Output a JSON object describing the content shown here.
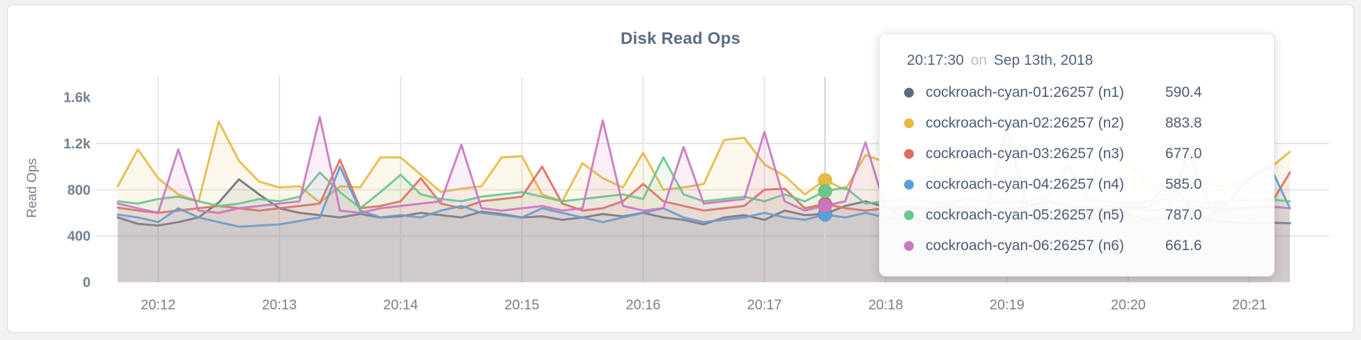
{
  "header": {
    "title": "Disk Read Ops"
  },
  "colors": {
    "page_bg": "#f3f2f0",
    "panel_bg": "#ffffff",
    "grid": "#e7e6e3",
    "crosshair": "#d3d2cf",
    "tick_text": "#75808f",
    "title_text": "#5b6c84"
  },
  "chart_data": {
    "type": "area",
    "title": "Disk Read Ops",
    "xlabel": "",
    "ylabel": "Read Ops",
    "x_start": "20:11:40",
    "x_step_seconds": 10,
    "x_tick_labels": [
      "20:12",
      "20:13",
      "20:14",
      "20:15",
      "20:16",
      "20:17",
      "20:18",
      "20:19",
      "20:20",
      "20:21"
    ],
    "y_ticks": [
      {
        "value": 0,
        "label": "0"
      },
      {
        "value": 400,
        "label": "400"
      },
      {
        "value": 800,
        "label": "800"
      },
      {
        "value": 1200,
        "label": "1.2k"
      },
      {
        "value": 1600,
        "label": "1.6k"
      }
    ],
    "y_grid_values": [
      400,
      800,
      1200
    ],
    "ylim": [
      0,
      1780
    ],
    "grid": true,
    "legend_position": "tooltip",
    "hover_time": "20:17:30",
    "series": [
      {
        "name": "cockroach-cyan-01:26257 (n1)",
        "color": "#5f6a80",
        "values": [
          560,
          505,
          490,
          520,
          560,
          690,
          890,
          760,
          640,
          600,
          580,
          560,
          590,
          560,
          570,
          600,
          580,
          560,
          610,
          590,
          560,
          570,
          540,
          560,
          590,
          570,
          600,
          560,
          540,
          500,
          560,
          580,
          540,
          620,
          580,
          590.4,
          660,
          700,
          650,
          560,
          520,
          560,
          600,
          560,
          540,
          580,
          560,
          540,
          600,
          560,
          580,
          540,
          560,
          580,
          540,
          520,
          510,
          515,
          510
        ]
      },
      {
        "name": "cockroach-cyan-02:26257 (n2)",
        "color": "#e7ba42",
        "values": [
          830,
          1150,
          900,
          760,
          700,
          1390,
          1050,
          870,
          820,
          830,
          690,
          830,
          820,
          1080,
          1080,
          930,
          780,
          810,
          830,
          1080,
          1090,
          760,
          700,
          1030,
          900,
          820,
          1120,
          800,
          820,
          850,
          1230,
          1250,
          1020,
          920,
          760,
          883.8,
          800,
          1100,
          1040,
          820,
          800,
          1150,
          900,
          820,
          800,
          850,
          820,
          800,
          820,
          1200,
          1050,
          820,
          800,
          820,
          850,
          820,
          900,
          985,
          1130
        ]
      },
      {
        "name": "cockroach-cyan-03:26257 (n3)",
        "color": "#e06c62",
        "values": [
          645,
          620,
          600,
          620,
          640,
          660,
          640,
          620,
          640,
          660,
          680,
          1060,
          640,
          660,
          700,
          900,
          680,
          640,
          700,
          720,
          740,
          1000,
          680,
          620,
          640,
          700,
          850,
          700,
          660,
          620,
          640,
          660,
          800,
          810,
          640,
          677,
          640,
          620,
          640,
          660,
          640,
          620,
          660,
          640,
          620,
          660,
          700,
          660,
          640,
          620,
          660,
          640,
          900,
          660,
          640,
          620,
          640,
          660,
          950
        ]
      },
      {
        "name": "cockroach-cyan-04:26257 (n4)",
        "color": "#5c9ed7",
        "values": [
          585,
          560,
          520,
          640,
          560,
          520,
          480,
          490,
          500,
          530,
          560,
          1000,
          620,
          560,
          580,
          560,
          620,
          660,
          600,
          580,
          560,
          640,
          600,
          560,
          520,
          560,
          600,
          640,
          560,
          520,
          540,
          560,
          600,
          560,
          540,
          585,
          560,
          600,
          560,
          540,
          560,
          520,
          560,
          600,
          560,
          540,
          520,
          560,
          540,
          560,
          580,
          540,
          560,
          540,
          560,
          700,
          900,
          1010,
          640
        ]
      },
      {
        "name": "cockroach-cyan-05:26257 (n5)",
        "color": "#6ac58f",
        "values": [
          700,
          680,
          720,
          740,
          700,
          660,
          680,
          720,
          700,
          740,
          950,
          780,
          640,
          780,
          930,
          760,
          720,
          700,
          740,
          760,
          780,
          740,
          700,
          720,
          740,
          760,
          720,
          1080,
          760,
          700,
          720,
          740,
          700,
          760,
          700,
          787,
          820,
          680,
          700,
          720,
          700,
          680,
          720,
          700,
          680,
          700,
          740,
          1010,
          720,
          700,
          680,
          700,
          720,
          700,
          680,
          700,
          710,
          715,
          700
        ]
      },
      {
        "name": "cockroach-cyan-06:26257 (n6)",
        "color": "#ca77bf",
        "values": [
          680,
          640,
          600,
          1150,
          620,
          600,
          640,
          660,
          680,
          700,
          1430,
          620,
          600,
          640,
          660,
          680,
          700,
          1190,
          640,
          620,
          640,
          660,
          620,
          640,
          1400,
          660,
          620,
          640,
          1170,
          680,
          700,
          720,
          1300,
          700,
          620,
          661.6,
          700,
          1210,
          640,
          620,
          640,
          660,
          640,
          620,
          1320,
          660,
          640,
          620,
          640,
          660,
          640,
          620,
          640,
          1150,
          660,
          640,
          650,
          655,
          640
        ]
      }
    ]
  },
  "tooltip": {
    "time": "20:17:30",
    "connector": "on",
    "date": "Sep 13th, 2018",
    "rows": [
      {
        "label": "cockroach-cyan-01:26257 (n1)",
        "value": "590.4",
        "color": "#5f6a80"
      },
      {
        "label": "cockroach-cyan-02:26257 (n2)",
        "value": "883.8",
        "color": "#e7ba42"
      },
      {
        "label": "cockroach-cyan-03:26257 (n3)",
        "value": "677.0",
        "color": "#e06c62"
      },
      {
        "label": "cockroach-cyan-04:26257 (n4)",
        "value": "585.0",
        "color": "#5c9ed7"
      },
      {
        "label": "cockroach-cyan-05:26257 (n5)",
        "value": "787.0",
        "color": "#6ac58f"
      },
      {
        "label": "cockroach-cyan-06:26257 (n6)",
        "value": "661.6",
        "color": "#ca77bf"
      }
    ]
  }
}
